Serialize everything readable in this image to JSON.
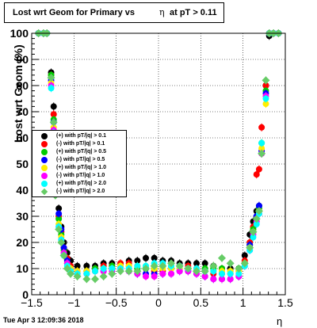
{
  "title": {
    "part1": "Lost wrt Geom for Primary vs",
    "eta_symbol": "η",
    "part2": "at pT > 0.11"
  },
  "footer": "Tue Apr  3 12:09:36 2018",
  "chart_data": {
    "type": "scatter",
    "title": "Lost wrt Geom for Primary vs η at pT > 0.11",
    "xlabel": "η",
    "ylabel": "Lost wrt Geom (%)",
    "xlim": [
      -1.5,
      1.5
    ],
    "ylim": [
      0,
      100
    ],
    "xticks": [
      "−1.5",
      "−1",
      "−0.5",
      "0",
      "0.5",
      "1",
      "1.5"
    ],
    "yticks": [
      "0",
      "10",
      "20",
      "30",
      "40",
      "50",
      "60",
      "70",
      "80",
      "90",
      "100"
    ],
    "grid": true,
    "legend_position": "left",
    "series": [
      {
        "name": "(+) with pT/|q| > 0.1",
        "color": "#000000",
        "marker": "circle",
        "x": [
          -1.42,
          -1.36,
          -1.32,
          -1.27,
          -1.24,
          -1.22,
          -1.18,
          -1.15,
          -1.12,
          -1.08,
          -1.04,
          -0.96,
          -0.85,
          -0.75,
          -0.65,
          -0.55,
          -0.45,
          -0.35,
          -0.25,
          -0.15,
          -0.05,
          0.05,
          0.15,
          0.25,
          0.35,
          0.45,
          0.55,
          0.65,
          0.75,
          0.85,
          0.95,
          1.02,
          1.08,
          1.12,
          1.16,
          1.19,
          1.22,
          1.27,
          1.31,
          1.36,
          1.42
        ],
        "y": [
          100,
          100,
          100,
          85,
          72,
          50,
          33,
          26,
          20,
          16,
          13,
          11,
          11,
          11,
          12,
          12,
          12,
          13,
          13,
          14,
          14,
          13,
          13,
          12,
          12,
          12,
          12,
          11,
          10,
          10,
          10,
          15,
          23,
          28,
          32,
          34,
          54,
          80,
          99,
          100,
          100
        ]
      },
      {
        "name": "(-) with pT/|q| > 0.1",
        "color": "#ff0000",
        "marker": "circle",
        "x": [
          -1.42,
          -1.36,
          -1.32,
          -1.27,
          -1.24,
          -1.22,
          -1.18,
          -1.15,
          -1.12,
          -1.08,
          -1.04,
          -0.96,
          -0.85,
          -0.75,
          -0.65,
          -0.55,
          -0.45,
          -0.35,
          -0.25,
          -0.15,
          -0.05,
          0.05,
          0.15,
          0.25,
          0.35,
          0.45,
          0.55,
          0.65,
          0.75,
          0.85,
          0.95,
          1.02,
          1.08,
          1.12,
          1.16,
          1.19,
          1.22,
          1.27,
          1.31,
          1.36,
          1.42
        ],
        "y": [
          100,
          100,
          100,
          84,
          69,
          47,
          30,
          24,
          18,
          14,
          11,
          9,
          9,
          10,
          11,
          11,
          12,
          12,
          11,
          10,
          9,
          9,
          10,
          11,
          11,
          10,
          9,
          8,
          8,
          8,
          9,
          13,
          20,
          26,
          46,
          48,
          64,
          80,
          100,
          100,
          100
        ]
      },
      {
        "name": "(+) with pT/|q| > 0.5",
        "color": "#00cc00",
        "marker": "circle",
        "x": [
          -1.42,
          -1.36,
          -1.32,
          -1.27,
          -1.24,
          -1.22,
          -1.18,
          -1.15,
          -1.12,
          -1.08,
          -1.04,
          -0.96,
          -0.85,
          -0.75,
          -0.65,
          -0.55,
          -0.45,
          -0.35,
          -0.25,
          -0.15,
          -0.05,
          0.05,
          0.15,
          0.25,
          0.35,
          0.45,
          0.55,
          0.65,
          0.75,
          0.85,
          0.95,
          1.02,
          1.08,
          1.12,
          1.16,
          1.19,
          1.22,
          1.27,
          1.31,
          1.36,
          1.42
        ],
        "y": [
          100,
          100,
          100,
          84,
          67,
          44,
          29,
          23,
          17,
          12,
          10,
          8,
          9,
          10,
          10,
          11,
          11,
          11,
          10,
          10,
          10,
          11,
          11,
          10,
          10,
          9,
          10,
          10,
          10,
          9,
          10,
          12,
          19,
          25,
          29,
          33,
          58,
          78,
          100,
          100,
          100
        ]
      },
      {
        "name": "(-) with pT/|q| > 0.5",
        "color": "#0000ff",
        "marker": "circle",
        "x": [
          -1.42,
          -1.36,
          -1.32,
          -1.27,
          -1.24,
          -1.22,
          -1.18,
          -1.15,
          -1.12,
          -1.08,
          -1.04,
          -0.96,
          -0.85,
          -0.75,
          -0.65,
          -0.55,
          -0.45,
          -0.35,
          -0.25,
          -0.15,
          -0.05,
          0.05,
          0.15,
          0.25,
          0.35,
          0.45,
          0.55,
          0.65,
          0.75,
          0.85,
          0.95,
          1.02,
          1.08,
          1.12,
          1.16,
          1.19,
          1.22,
          1.27,
          1.31,
          1.36,
          1.42
        ],
        "y": [
          100,
          100,
          100,
          82,
          66,
          42,
          31,
          25,
          18,
          13,
          10,
          8,
          8,
          9,
          9,
          10,
          10,
          9,
          8,
          8,
          8,
          8,
          8,
          9,
          9,
          8,
          7,
          6,
          6,
          6,
          7,
          12,
          19,
          24,
          30,
          34,
          55,
          77,
          100,
          100,
          100
        ]
      },
      {
        "name": "(+) with pT/|q| > 1.0",
        "color": "#ffee00",
        "marker": "circle",
        "x": [
          -1.42,
          -1.36,
          -1.32,
          -1.27,
          -1.24,
          -1.22,
          -1.18,
          -1.15,
          -1.12,
          -1.08,
          -1.04,
          -0.96,
          -0.85,
          -0.75,
          -0.65,
          -0.55,
          -0.45,
          -0.35,
          -0.25,
          -0.15,
          -0.05,
          0.05,
          0.15,
          0.25,
          0.35,
          0.45,
          0.55,
          0.65,
          0.75,
          0.85,
          0.95,
          1.02,
          1.08,
          1.12,
          1.16,
          1.19,
          1.22,
          1.27,
          1.31,
          1.36,
          1.42
        ],
        "y": [
          100,
          100,
          100,
          81,
          64,
          42,
          27,
          22,
          16,
          12,
          10,
          9,
          9,
          9,
          10,
          10,
          11,
          11,
          11,
          11,
          10,
          10,
          10,
          10,
          10,
          9,
          9,
          9,
          9,
          9,
          9,
          12,
          18,
          24,
          29,
          32,
          56,
          73,
          100,
          100,
          100
        ]
      },
      {
        "name": "(-) with pT/|q| > 1.0",
        "color": "#ff00ff",
        "marker": "circle",
        "x": [
          -1.42,
          -1.36,
          -1.32,
          -1.27,
          -1.24,
          -1.22,
          -1.18,
          -1.15,
          -1.12,
          -1.08,
          -1.04,
          -0.96,
          -0.85,
          -0.75,
          -0.65,
          -0.55,
          -0.45,
          -0.35,
          -0.25,
          -0.15,
          -0.05,
          0.05,
          0.15,
          0.25,
          0.35,
          0.45,
          0.55,
          0.65,
          0.75,
          0.85,
          0.95,
          1.02,
          1.08,
          1.12,
          1.16,
          1.19,
          1.22,
          1.27,
          1.31,
          1.36,
          1.42
        ],
        "y": [
          100,
          100,
          100,
          80,
          63,
          40,
          26,
          21,
          16,
          12,
          9,
          8,
          8,
          9,
          9,
          9,
          10,
          9,
          8,
          7,
          7,
          8,
          8,
          9,
          9,
          8,
          7,
          6,
          6,
          6,
          7,
          11,
          17,
          23,
          28,
          31,
          54,
          76,
          100,
          100,
          100
        ]
      },
      {
        "name": "(+) with pT/|q| > 2.0",
        "color": "#00ffff",
        "marker": "circle",
        "x": [
          -1.42,
          -1.36,
          -1.32,
          -1.27,
          -1.24,
          -1.22,
          -1.18,
          -1.15,
          -1.12,
          -1.08,
          -1.04,
          -0.96,
          -0.85,
          -0.75,
          -0.65,
          -0.55,
          -0.45,
          -0.35,
          -0.25,
          -0.15,
          -0.05,
          0.05,
          0.15,
          0.25,
          0.35,
          0.45,
          0.55,
          0.65,
          0.75,
          0.85,
          0.95,
          1.02,
          1.08,
          1.12,
          1.16,
          1.19,
          1.22,
          1.27,
          1.31,
          1.36,
          1.42
        ],
        "y": [
          100,
          100,
          100,
          79,
          62,
          39,
          26,
          21,
          15,
          11,
          9,
          8,
          8,
          9,
          10,
          10,
          10,
          10,
          11,
          11,
          12,
          12,
          11,
          11,
          10,
          10,
          9,
          9,
          8,
          8,
          8,
          11,
          17,
          22,
          27,
          31,
          58,
          75,
          100,
          100,
          100
        ]
      },
      {
        "name": "(-) with pT/|q| > 2.0",
        "color": "#66cc66",
        "marker": "diamond",
        "x": [
          -1.42,
          -1.36,
          -1.32,
          -1.27,
          -1.24,
          -1.22,
          -1.18,
          -1.15,
          -1.12,
          -1.08,
          -1.04,
          -0.96,
          -0.85,
          -0.75,
          -0.65,
          -0.55,
          -0.45,
          -0.35,
          -0.25,
          -0.15,
          -0.05,
          0.05,
          0.15,
          0.25,
          0.35,
          0.45,
          0.55,
          0.65,
          0.75,
          0.85,
          0.95,
          1.02,
          1.08,
          1.12,
          1.16,
          1.19,
          1.22,
          1.27,
          1.31,
          1.36,
          1.42
        ],
        "y": [
          100,
          100,
          100,
          83,
          66,
          38,
          25,
          20,
          15,
          10,
          8,
          7,
          6,
          6,
          7,
          8,
          9,
          9,
          9,
          10,
          11,
          11,
          12,
          11,
          10,
          9,
          9,
          11,
          14,
          12,
          10,
          12,
          18,
          24,
          29,
          32,
          54,
          82,
          100,
          100,
          100
        ]
      }
    ]
  }
}
